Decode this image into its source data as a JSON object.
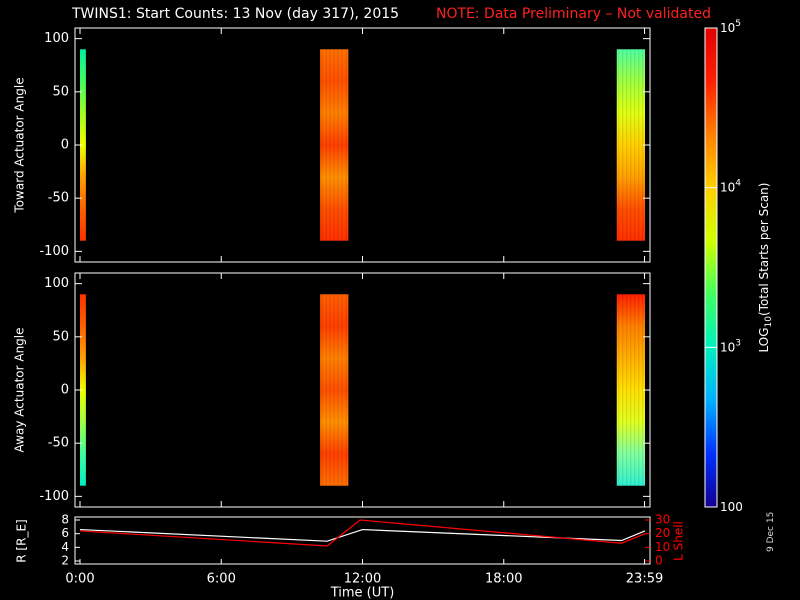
{
  "title": "TWINS1: Start Counts: 13 Nov (day 317), 2015",
  "note": "NOTE: Data Preliminary – Not validated",
  "stamp": "9 Dec 15",
  "colors": {
    "background": "#000000",
    "axis": "#ffffff",
    "note": "#ff2020",
    "radius_line": "#ffffff",
    "lshell_line": "#ff0000"
  },
  "chart_data": [
    {
      "type": "heatmap",
      "title": "",
      "ylabel": "Toward Actuator Angle",
      "xlabel": "",
      "ylim": [
        -110,
        110
      ],
      "xlim_hours": [
        0,
        24
      ],
      "yticks": [
        100,
        50,
        0,
        -50,
        -100
      ],
      "scan_blocks": [
        {
          "start_hour": 0.0,
          "end_hour": 0.25,
          "angle_range": [
            -90,
            90
          ],
          "profile": [
            "#00f0a0",
            "#40ff60",
            "#a0ff20",
            "#f0ff00",
            "#ffa000",
            "#ff6000",
            "#ff3000"
          ]
        },
        {
          "start_hour": 10.2,
          "end_hour": 11.4,
          "angle_range": [
            -90,
            90
          ],
          "profile": [
            "#ff7000",
            "#ff5000",
            "#ff8000",
            "#ff4000",
            "#ff9000",
            "#ff5000",
            "#ff3000"
          ]
        },
        {
          "start_hour": 22.8,
          "end_hour": 24.0,
          "angle_range": [
            -90,
            90
          ],
          "profile": [
            "#50ffa0",
            "#a0ff40",
            "#e0ff10",
            "#ffd000",
            "#ffa000",
            "#ff5000",
            "#ff3000"
          ]
        }
      ]
    },
    {
      "type": "heatmap",
      "title": "",
      "ylabel": "Away Actuator Angle",
      "xlabel": "",
      "ylim": [
        -110,
        110
      ],
      "xlim_hours": [
        0,
        24
      ],
      "yticks": [
        100,
        50,
        0,
        -50,
        -100
      ],
      "scan_blocks": [
        {
          "start_hour": 0.0,
          "end_hour": 0.25,
          "angle_range": [
            -90,
            90
          ],
          "profile": [
            "#ff3000",
            "#ff6000",
            "#ffa000",
            "#f0ff00",
            "#a0ff40",
            "#40ffa0",
            "#00f0c0"
          ]
        },
        {
          "start_hour": 10.2,
          "end_hour": 11.4,
          "angle_range": [
            -90,
            90
          ],
          "profile": [
            "#ff6000",
            "#ff4000",
            "#ff8000",
            "#ff5000",
            "#ff9000",
            "#ff4000",
            "#ff7000"
          ]
        },
        {
          "start_hour": 22.8,
          "end_hour": 24.0,
          "angle_range": [
            -90,
            90
          ],
          "profile": [
            "#ff2000",
            "#ff8000",
            "#ffb000",
            "#ffe000",
            "#e0ff20",
            "#80ffa0",
            "#30f0d0"
          ]
        }
      ]
    },
    {
      "type": "line",
      "title": "",
      "xlabel": "Time (UT)",
      "ylabel": "R [R_E]",
      "ylabel_right": "L Shell",
      "xticks": [
        "0:00",
        "6:00",
        "12:00",
        "18:00",
        "23:59"
      ],
      "xtick_hours": [
        0,
        6,
        12,
        18,
        23.98
      ],
      "ylim": [
        2,
        8
      ],
      "yticks": [
        8,
        6,
        4,
        2
      ],
      "ylim_right": [
        0,
        30
      ],
      "yticks_right": [
        30,
        20,
        10,
        0
      ],
      "series": [
        {
          "name": "R [R_E]",
          "axis": "left",
          "x": [
            0,
            10.5,
            12.0,
            23.0,
            24.0
          ],
          "y": [
            6.6,
            4.9,
            6.6,
            5.0,
            6.4
          ]
        },
        {
          "name": "L Shell",
          "axis": "right",
          "x": [
            0,
            10.5,
            11.9,
            23.0,
            24.0
          ],
          "y": [
            22,
            11,
            30,
            13,
            20
          ]
        }
      ]
    }
  ],
  "colorbar": {
    "label_prefix": "LOG",
    "label_sub": "10",
    "label_suffix": "(Total Starts per Scan)",
    "range": [
      100,
      100000
    ],
    "scale": "log",
    "ticks": [
      {
        "value": 100000,
        "base": "10",
        "exp": "5"
      },
      {
        "value": 10000,
        "base": "10",
        "exp": "4"
      },
      {
        "value": 1000,
        "base": "10",
        "exp": "3"
      },
      {
        "value": 100,
        "base": "100",
        "exp": ""
      }
    ],
    "stops": [
      "#140090",
      "#0030ff",
      "#00b0ff",
      "#00f0c0",
      "#40ff60",
      "#d0ff00",
      "#ffd000",
      "#ff8000",
      "#ff2000",
      "#e00000"
    ]
  }
}
